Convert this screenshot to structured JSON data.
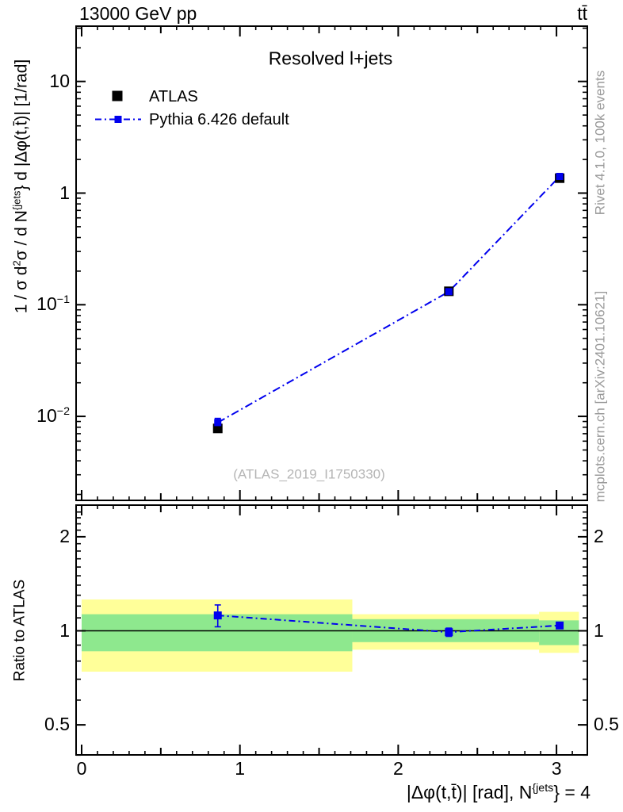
{
  "header": {
    "left": "13000 GeV pp",
    "right": "tt̄"
  },
  "side_notes": {
    "top": "Rivet 4.1.0,  100k events",
    "bottom": "mcplots.cern.ch [arXiv:2401.10621]"
  },
  "watermark": "(ATLAS_2019_I1750330)",
  "colors": {
    "atlas": "#000000",
    "pythia": "#0000ee",
    "band_yellow": "#ffff99",
    "band_green": "#8ee88e",
    "gray_text": "#999999",
    "watermark": "#b5b5b5",
    "frame": "#000000"
  },
  "chart_data": {
    "type": "line",
    "title": "Resolved l+jets",
    "xlabel_parts": [
      {
        "t": "|Δφ(t,t̄)| [rad], N"
      },
      {
        "t": "{jets",
        "sup": true
      },
      {
        "t": "} = 4"
      }
    ],
    "ylabel_parts": [
      {
        "t": "1 / σ d"
      },
      {
        "t": "2",
        "sup": true
      },
      {
        "t": "σ / d N"
      },
      {
        "t": "{jets",
        "sup": true
      },
      {
        "t": "} d |Δφ(t,t̄)| [1/rad]"
      }
    ],
    "ratio_ylabel": "Ratio to ATLAS",
    "xlim": [
      -0.035,
      3.195
    ],
    "main_ylim": [
      0.0018,
      31
    ],
    "ratio_ylim": [
      0.4,
      2.52
    ],
    "yscale": "log",
    "xticks": {
      "major": [
        0,
        1,
        2,
        3
      ],
      "labels": [
        "0",
        "1",
        "2",
        "3"
      ],
      "medium_step": 0.5,
      "minor_step": 0.1
    },
    "main_yticks": [
      {
        "v": 10,
        "base": "10",
        "exp": ""
      },
      {
        "v": 1,
        "base": "1",
        "exp": ""
      },
      {
        "v": 0.1,
        "base": "10",
        "exp": "−1"
      },
      {
        "v": 0.01,
        "base": "10",
        "exp": "−2"
      }
    ],
    "ratio_yticks": [
      {
        "v": 2,
        "label": "2"
      },
      {
        "v": 1,
        "label": "1"
      },
      {
        "v": 0.5,
        "label": "0.5"
      }
    ],
    "legend": [
      {
        "label": "ATLAS"
      },
      {
        "label": "Pythia 6.426 default"
      }
    ],
    "series": [
      {
        "name": "ATLAS",
        "marker": "filled-square",
        "marker_size": 12,
        "x": [
          0.86,
          2.32,
          3.02
        ],
        "y": [
          0.0078,
          0.132,
          1.36
        ]
      },
      {
        "name": "Pythia 6.426 default",
        "marker": "filled-square",
        "marker_size": 9,
        "line": "dash-dot",
        "x": [
          0.86,
          2.32,
          3.02
        ],
        "y": [
          0.0088,
          0.131,
          1.41
        ],
        "yerr": [
          0.0008,
          0.003,
          0.03
        ]
      }
    ],
    "ratio": {
      "reference": 1,
      "series": {
        "name": "Pythia 6.426 default",
        "x": [
          0.86,
          2.32,
          3.02
        ],
        "y": [
          1.12,
          0.99,
          1.04
        ],
        "yerr": [
          0.09,
          0.03,
          0.02
        ]
      },
      "bands": [
        {
          "x0": 0,
          "x1": 1.71,
          "outer": [
            0.74,
            1.26
          ],
          "inner": [
            0.86,
            1.13
          ]
        },
        {
          "x0": 1.71,
          "x1": 2.89,
          "outer": [
            0.87,
            1.13
          ],
          "inner": [
            0.92,
            1.09
          ]
        },
        {
          "x0": 2.89,
          "x1": 3.1416,
          "outer": [
            0.85,
            1.15
          ],
          "inner": [
            0.9,
            1.08
          ]
        }
      ]
    }
  }
}
